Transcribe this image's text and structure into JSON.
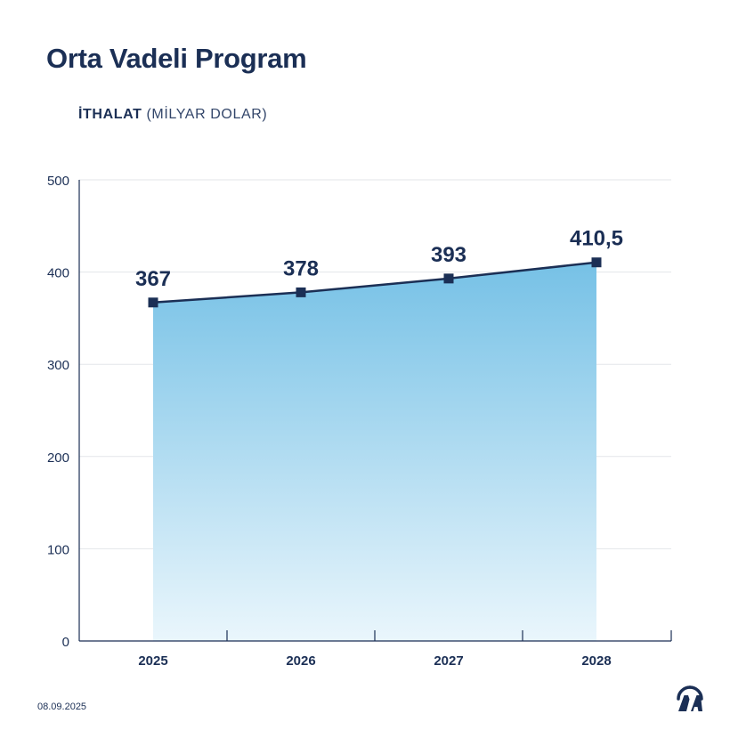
{
  "header": {
    "title": "Orta Vadeli Program",
    "subtitle_bold": "İTHALAT",
    "subtitle_light": "(MİLYAR DOLAR)"
  },
  "footer": {
    "date": "08.09.2025",
    "logo": "AA"
  },
  "colors": {
    "line": "#1b2f55",
    "area_top": "#76c1e6",
    "area_bottom": "#eaf6fc",
    "grid": "#e3e6ea",
    "axis": "#1b2f55"
  },
  "chart_data": {
    "type": "area",
    "title": "İTHALAT (MİLYAR DOLAR)",
    "categories": [
      "2025",
      "2026",
      "2027",
      "2028"
    ],
    "values": [
      367,
      378,
      393,
      410.5
    ],
    "value_labels": [
      "367",
      "378",
      "393",
      "410,5"
    ],
    "ylim": [
      0,
      500
    ],
    "yticks": [
      0,
      100,
      200,
      300,
      400,
      500
    ],
    "xlabel": "",
    "ylabel": "",
    "grid": true,
    "legend": "none"
  }
}
